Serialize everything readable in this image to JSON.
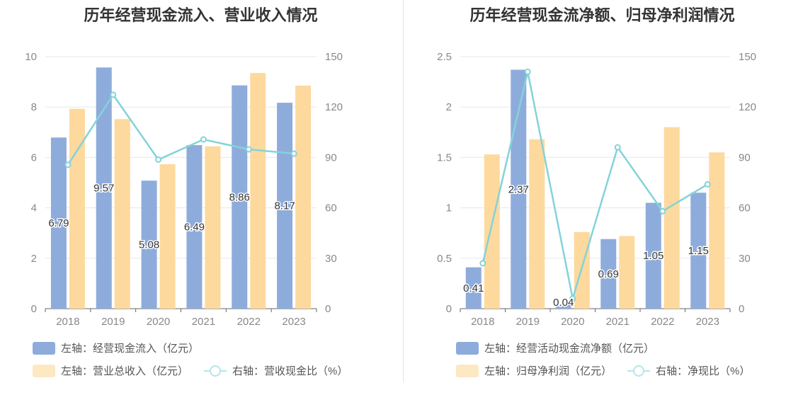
{
  "colors": {
    "bar1": "#8eacdb",
    "bar2": "#fdd99e",
    "line": "#84d3d8",
    "grid": "#e4e7f0",
    "axis": "#666666"
  },
  "chart_data": [
    {
      "type": "bar",
      "title": "历年经营现金流入、营业收入情况",
      "categories": [
        "2018",
        "2019",
        "2020",
        "2021",
        "2022",
        "2023"
      ],
      "ylim_left": [
        0,
        10
      ],
      "yticks_left": [
        "0",
        "2",
        "4",
        "6",
        "8",
        "10"
      ],
      "ylim_right": [
        0,
        150
      ],
      "yticks_right": [
        "0",
        "30",
        "60",
        "90",
        "120",
        "150"
      ],
      "grid": true,
      "legend_position": "bottom-left",
      "series": [
        {
          "name": "左轴：经营现金流入（亿元）",
          "kind": "bar",
          "axis": "left",
          "values": [
            6.79,
            9.57,
            5.08,
            6.49,
            8.86,
            8.17
          ],
          "labels": [
            "6.79",
            "9.57",
            "5.08",
            "6.49",
            "8.86",
            "8.17"
          ]
        },
        {
          "name": "左轴：营业总收入（亿元）",
          "kind": "bar",
          "axis": "left",
          "values": [
            7.93,
            7.52,
            5.73,
            6.44,
            9.35,
            8.85
          ]
        },
        {
          "name": "右轴：营收现金比（%）",
          "kind": "line",
          "axis": "right",
          "values": [
            85.6,
            127.3,
            88.7,
            100.7,
            94.8,
            92.3
          ]
        }
      ]
    },
    {
      "type": "bar",
      "title": "历年经营现金流净额、归母净利润情况",
      "categories": [
        "2018",
        "2019",
        "2020",
        "2021",
        "2022",
        "2023"
      ],
      "ylim_left": [
        0,
        2.5
      ],
      "yticks_left": [
        "0",
        "0.5",
        "1",
        "1.5",
        "2",
        "2.5"
      ],
      "ylim_right": [
        0,
        150
      ],
      "yticks_right": [
        "0",
        "30",
        "60",
        "90",
        "120",
        "150"
      ],
      "grid": true,
      "legend_position": "bottom-left",
      "series": [
        {
          "name": "左轴：经营活动现金流净额（亿元）",
          "kind": "bar",
          "axis": "left",
          "values": [
            0.41,
            2.37,
            0.04,
            0.69,
            1.05,
            1.15
          ],
          "labels": [
            "0.41",
            "2.37",
            "0.04",
            "0.69",
            "1.05",
            "1.15"
          ]
        },
        {
          "name": "左轴：归母净利润（亿元）",
          "kind": "bar",
          "axis": "left",
          "values": [
            1.53,
            1.68,
            0.76,
            0.72,
            1.8,
            1.55
          ]
        },
        {
          "name": "右轴：净现比（%）",
          "kind": "line",
          "axis": "right",
          "values": [
            27.0,
            141.0,
            6.0,
            96.0,
            58.0,
            74.0
          ]
        }
      ]
    }
  ]
}
